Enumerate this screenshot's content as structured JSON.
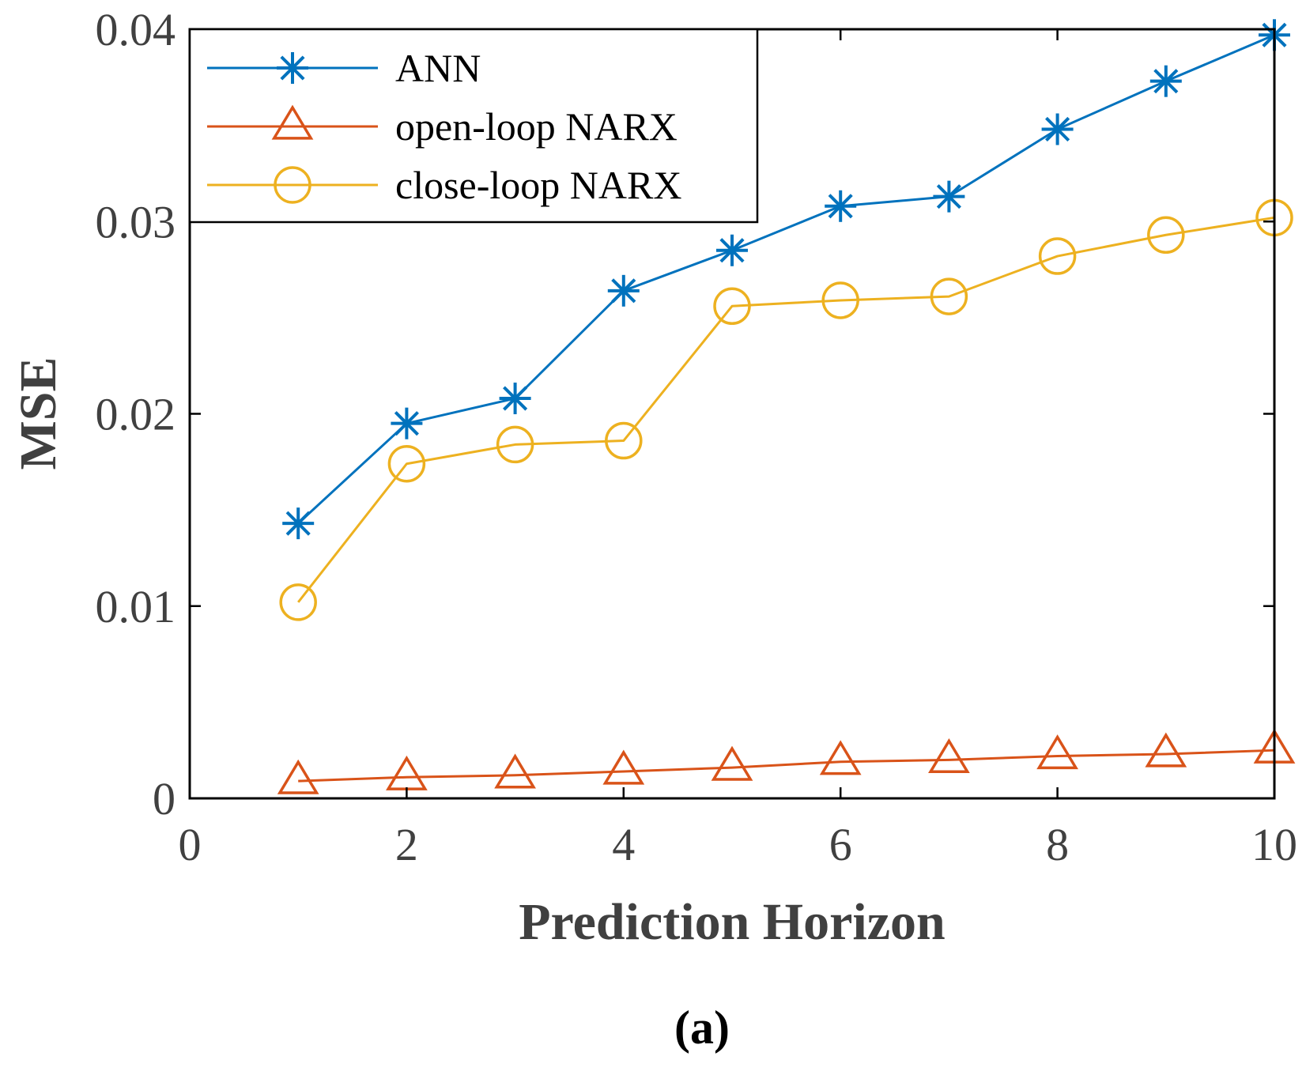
{
  "chart_data": {
    "type": "line",
    "title": "",
    "xlabel": "Prediction Horizon",
    "ylabel": "MSE",
    "caption": "(a)",
    "xlim": [
      0,
      10
    ],
    "ylim": [
      0,
      0.04
    ],
    "x_ticks": [
      "0",
      "2",
      "4",
      "6",
      "8",
      "10"
    ],
    "y_ticks": [
      "0",
      "0.01",
      "0.02",
      "0.03",
      "0.04"
    ],
    "grid": false,
    "legend_position": "top-left",
    "x": [
      1,
      2,
      3,
      4,
      5,
      6,
      7,
      8,
      9,
      10
    ],
    "series": [
      {
        "name": "ANN",
        "color": "#0072BD",
        "marker": "asterisk",
        "values": [
          0.0143,
          0.0195,
          0.0208,
          0.0264,
          0.0285,
          0.0308,
          0.0313,
          0.0348,
          0.0373,
          0.0397
        ]
      },
      {
        "name": "open-loop NARX",
        "color": "#D95319",
        "marker": "triangle",
        "values": [
          0.0009,
          0.0011,
          0.0012,
          0.0014,
          0.0016,
          0.0019,
          0.002,
          0.0022,
          0.0023,
          0.0025
        ]
      },
      {
        "name": "close-loop NARX",
        "color": "#EDB120",
        "marker": "circle",
        "values": [
          0.0102,
          0.0174,
          0.0184,
          0.0186,
          0.0256,
          0.0259,
          0.0261,
          0.0282,
          0.0293,
          0.0302
        ]
      }
    ]
  }
}
